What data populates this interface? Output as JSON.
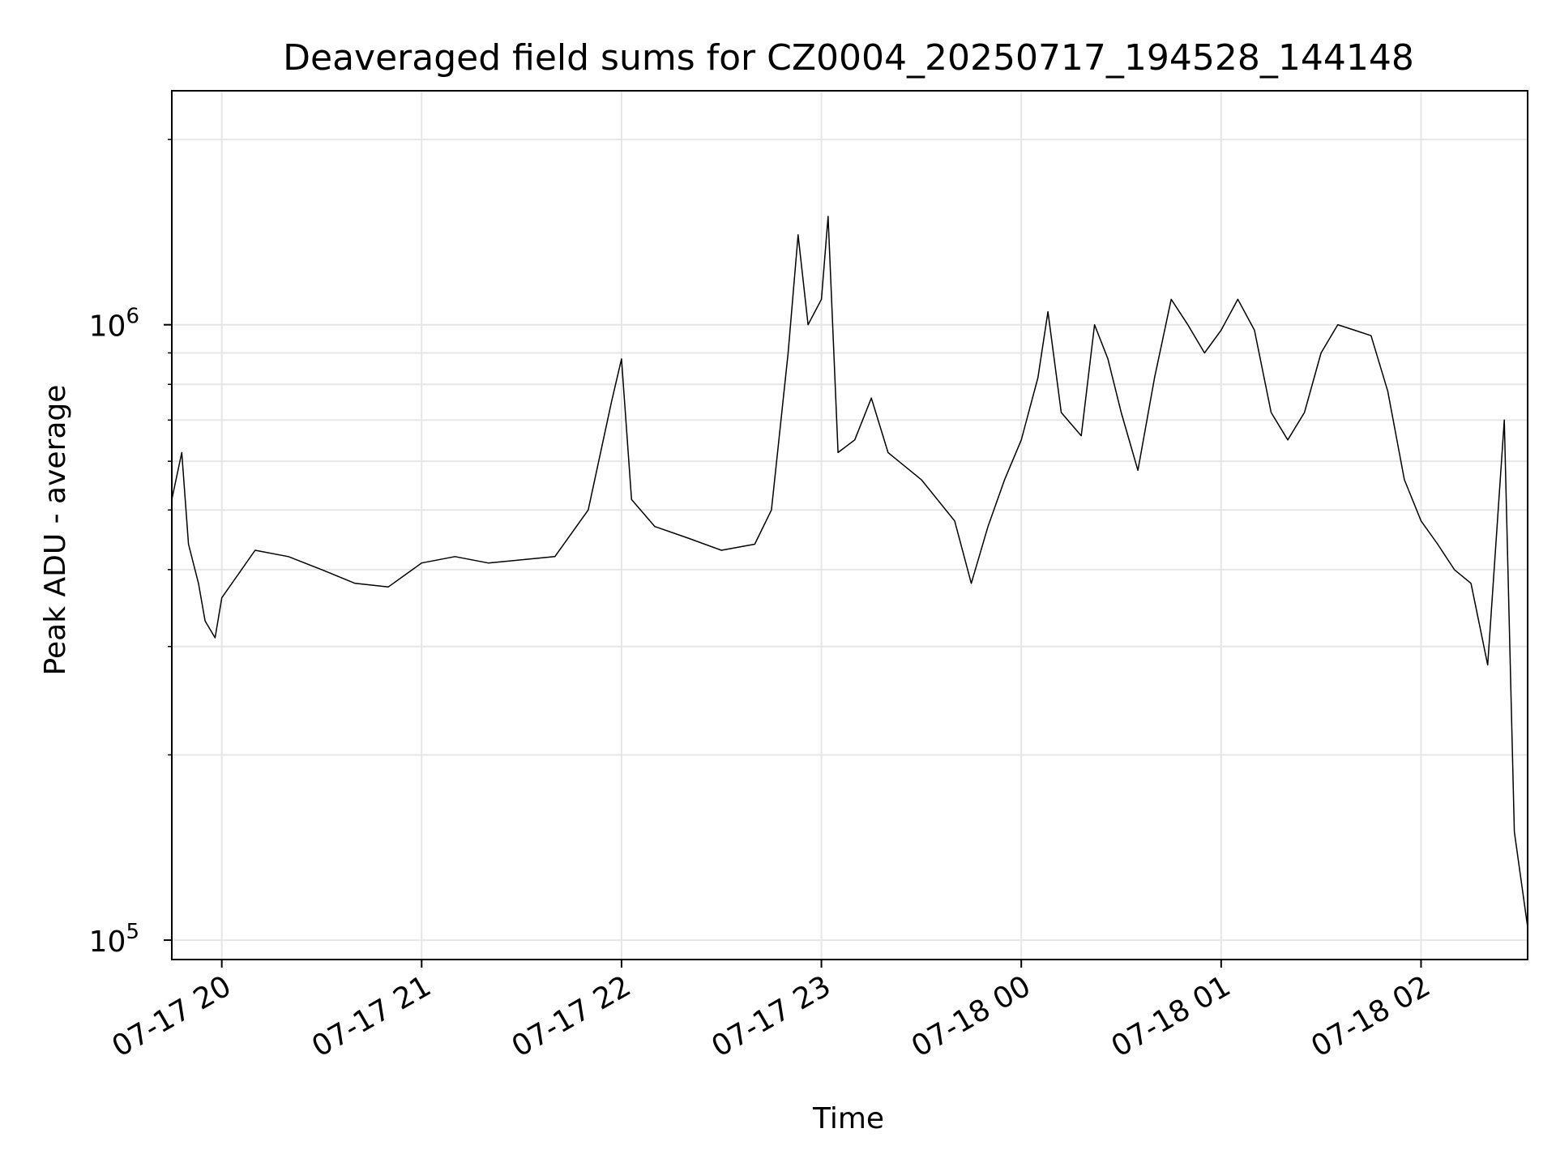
{
  "chart_data": {
    "type": "line",
    "title": "Deaveraged field sums for CZ0004_20250717_194528_144148",
    "xlabel": "Time",
    "ylabel": "Peak ADU - average",
    "yscale": "log",
    "ylim": [
      93000,
      2400000
    ],
    "xlim": [
      "07-17 19:45",
      "07-18 02:32"
    ],
    "grid": true,
    "line_color": "#000000",
    "grid_color": "#e6e6e6",
    "x_ticks": [
      "07-17 20",
      "07-17 21",
      "07-17 22",
      "07-17 23",
      "07-18 00",
      "07-18 01",
      "07-18 02"
    ],
    "y_ticks": [
      {
        "value": 100000,
        "base": "10",
        "exp": "5"
      },
      {
        "value": 1000000,
        "base": "10",
        "exp": "6"
      }
    ],
    "series": [
      {
        "points": [
          [
            "07-17 19:45",
            520000
          ],
          [
            "07-17 19:48",
            620000
          ],
          [
            "07-17 19:50",
            440000
          ],
          [
            "07-17 19:53",
            380000
          ],
          [
            "07-17 19:55",
            330000
          ],
          [
            "07-17 19:58",
            310000
          ],
          [
            "07-17 20:00",
            360000
          ],
          [
            "07-17 20:10",
            430000
          ],
          [
            "07-17 20:20",
            420000
          ],
          [
            "07-17 20:30",
            400000
          ],
          [
            "07-17 20:40",
            380000
          ],
          [
            "07-17 20:50",
            375000
          ],
          [
            "07-17 21:00",
            410000
          ],
          [
            "07-17 21:10",
            420000
          ],
          [
            "07-17 21:20",
            410000
          ],
          [
            "07-17 21:30",
            415000
          ],
          [
            "07-17 21:40",
            420000
          ],
          [
            "07-17 21:50",
            500000
          ],
          [
            "07-17 21:57",
            750000
          ],
          [
            "07-17 22:00",
            880000
          ],
          [
            "07-17 22:03",
            520000
          ],
          [
            "07-17 22:10",
            470000
          ],
          [
            "07-17 22:20",
            450000
          ],
          [
            "07-17 22:30",
            430000
          ],
          [
            "07-17 22:40",
            440000
          ],
          [
            "07-17 22:45",
            500000
          ],
          [
            "07-17 22:50",
            900000
          ],
          [
            "07-17 22:53",
            1400000
          ],
          [
            "07-17 22:56",
            1000000
          ],
          [
            "07-17 23:00",
            1100000
          ],
          [
            "07-17 23:02",
            1500000
          ],
          [
            "07-17 23:05",
            620000
          ],
          [
            "07-17 23:10",
            650000
          ],
          [
            "07-17 23:15",
            760000
          ],
          [
            "07-17 23:20",
            620000
          ],
          [
            "07-17 23:30",
            560000
          ],
          [
            "07-17 23:40",
            480000
          ],
          [
            "07-17 23:45",
            380000
          ],
          [
            "07-17 23:50",
            470000
          ],
          [
            "07-17 23:55",
            560000
          ],
          [
            "07-18 00:00",
            650000
          ],
          [
            "07-18 00:05",
            820000
          ],
          [
            "07-18 00:08",
            1050000
          ],
          [
            "07-18 00:12",
            720000
          ],
          [
            "07-18 00:18",
            660000
          ],
          [
            "07-18 00:22",
            1000000
          ],
          [
            "07-18 00:26",
            880000
          ],
          [
            "07-18 00:30",
            720000
          ],
          [
            "07-18 00:35",
            580000
          ],
          [
            "07-18 00:40",
            820000
          ],
          [
            "07-18 00:45",
            1100000
          ],
          [
            "07-18 00:50",
            1000000
          ],
          [
            "07-18 00:55",
            900000
          ],
          [
            "07-18 01:00",
            980000
          ],
          [
            "07-18 01:05",
            1100000
          ],
          [
            "07-18 01:10",
            980000
          ],
          [
            "07-18 01:15",
            720000
          ],
          [
            "07-18 01:20",
            650000
          ],
          [
            "07-18 01:25",
            720000
          ],
          [
            "07-18 01:30",
            900000
          ],
          [
            "07-18 01:35",
            1000000
          ],
          [
            "07-18 01:40",
            980000
          ],
          [
            "07-18 01:45",
            960000
          ],
          [
            "07-18 01:50",
            780000
          ],
          [
            "07-18 01:55",
            560000
          ],
          [
            "07-18 02:00",
            480000
          ],
          [
            "07-18 02:05",
            440000
          ],
          [
            "07-18 02:10",
            400000
          ],
          [
            "07-18 02:15",
            380000
          ],
          [
            "07-18 02:20",
            280000
          ],
          [
            "07-18 02:25",
            700000
          ],
          [
            "07-18 02:28",
            150000
          ],
          [
            "07-18 02:32",
            105000
          ]
        ]
      }
    ]
  }
}
